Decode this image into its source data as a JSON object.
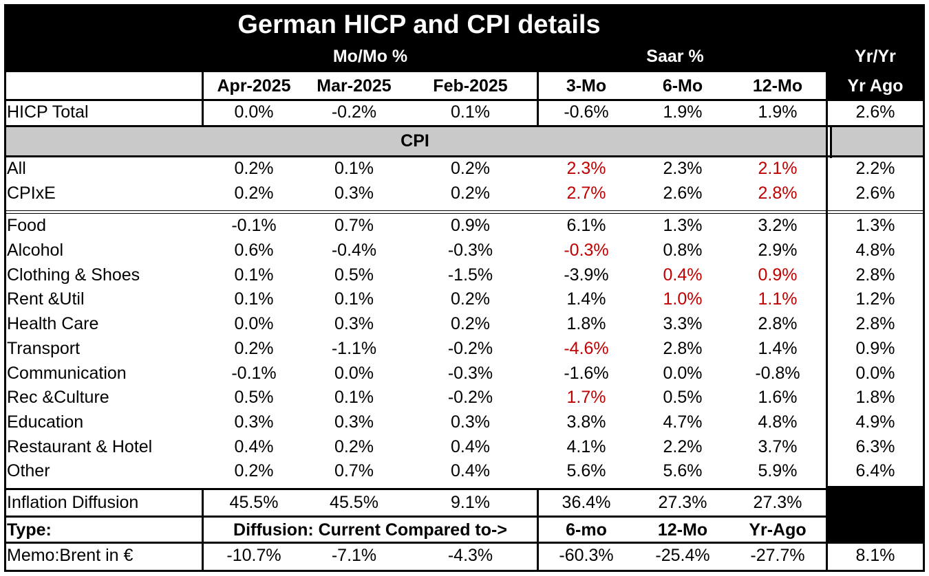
{
  "title": "German HICP and CPI details",
  "groups": {
    "momo": "Mo/Mo %",
    "saar": "Saar %",
    "yryr": "Yr/Yr"
  },
  "columns": [
    "Apr-2025",
    "Mar-2025",
    "Feb-2025",
    "3-Mo",
    "6-Mo",
    "12-Mo",
    "Yr Ago"
  ],
  "hicp": {
    "label": "HICP Total",
    "values": [
      "0.0%",
      "-0.2%",
      "0.1%",
      "-0.6%",
      "1.9%",
      "1.9%",
      "2.6%"
    ]
  },
  "cpi_section_label": "CPI",
  "cpi_top": [
    {
      "label": "All",
      "values": [
        "0.2%",
        "0.1%",
        "0.2%",
        "2.3%",
        "2.3%",
        "2.1%",
        "2.2%"
      ]
    },
    {
      "label": " CPIxE",
      "values": [
        "0.2%",
        "0.3%",
        "0.2%",
        "2.7%",
        "2.6%",
        "2.8%",
        "2.6%"
      ]
    }
  ],
  "categories": [
    {
      "label": "Food",
      "values": [
        "-0.1%",
        "0.7%",
        "0.9%",
        "6.1%",
        "1.3%",
        "3.2%",
        "1.3%"
      ]
    },
    {
      "label": "Alcohol",
      "values": [
        "0.6%",
        "-0.4%",
        "-0.3%",
        "-0.3%",
        "0.8%",
        "2.9%",
        "4.8%"
      ]
    },
    {
      "label": "Clothing & Shoes",
      "values": [
        "0.1%",
        "0.5%",
        "-1.5%",
        "-3.9%",
        "0.4%",
        "0.9%",
        "2.8%"
      ]
    },
    {
      "label": "Rent &Util",
      "values": [
        "0.1%",
        "0.1%",
        "0.2%",
        "1.4%",
        "1.0%",
        "1.1%",
        "1.2%"
      ]
    },
    {
      "label": "Health Care",
      "values": [
        "0.0%",
        "0.3%",
        "0.2%",
        "1.8%",
        "3.3%",
        "2.8%",
        "2.8%"
      ]
    },
    {
      "label": "Transport",
      "values": [
        "0.2%",
        "-1.1%",
        "-0.2%",
        "-4.6%",
        "2.8%",
        "1.4%",
        "0.9%"
      ]
    },
    {
      "label": "Communication",
      "values": [
        "-0.1%",
        "0.0%",
        "-0.3%",
        "-1.6%",
        "0.0%",
        "-0.8%",
        "0.0%"
      ]
    },
    {
      "label": "Rec &Culture",
      "values": [
        "0.5%",
        "0.1%",
        "-0.2%",
        "1.7%",
        "0.5%",
        "1.6%",
        "1.8%"
      ]
    },
    {
      "label": "Education",
      "values": [
        "0.3%",
        "0.3%",
        "0.3%",
        "3.8%",
        "4.7%",
        "4.8%",
        "4.9%"
      ]
    },
    {
      "label": "Restaurant & Hotel",
      "values": [
        "0.4%",
        "0.2%",
        "0.4%",
        "4.1%",
        "2.2%",
        "3.7%",
        "6.3%"
      ]
    },
    {
      "label": "Other",
      "values": [
        "0.2%",
        "0.7%",
        "0.4%",
        "5.6%",
        "5.6%",
        "5.9%",
        "6.4%"
      ]
    }
  ],
  "diffusion": {
    "label": "Inflation Diffusion",
    "values": [
      "45.5%",
      "45.5%",
      "9.1%",
      "36.4%",
      "27.3%",
      "27.3%"
    ]
  },
  "type_row": {
    "label": "Type:",
    "text": "Diffusion: Current Compared to->",
    "cols": [
      "6-mo",
      "12-Mo",
      "Yr-Ago"
    ]
  },
  "memo": {
    "label": "Memo:Brent in €",
    "values": [
      "-10.7%",
      "-7.1%",
      "-4.3%",
      "-60.3%",
      "-25.4%",
      "-27.7%",
      "8.1%"
    ]
  },
  "highlight_color": "#c00000",
  "highlights": [
    [
      3,
      4
    ],
    [
      4,
      3
    ],
    [
      4,
      5
    ],
    [
      5,
      3
    ],
    [
      5,
      5
    ],
    [
      8,
      3
    ],
    [
      9,
      4
    ],
    [
      9,
      5
    ],
    [
      10,
      4
    ],
    [
      10,
      5
    ],
    [
      12,
      3
    ],
    [
      14,
      3
    ]
  ]
}
